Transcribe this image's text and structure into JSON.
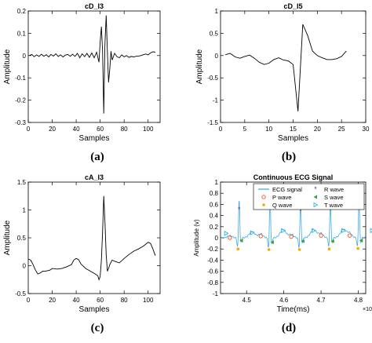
{
  "figure": {
    "captions": [
      "(a)",
      "(b)",
      "(c)",
      "(d)"
    ]
  },
  "chart_data": [
    {
      "id": "a",
      "type": "line",
      "title": "cD_I3",
      "xlabel": "Samples",
      "ylabel": "Amplitude",
      "xlim": [
        0,
        110
      ],
      "ylim": [
        -0.3,
        0.2
      ],
      "xticks": [
        0,
        20,
        40,
        60,
        80,
        100
      ],
      "yticks": [
        -0.3,
        -0.2,
        -0.1,
        0,
        0.1,
        0.2
      ],
      "yticklabels": [
        "-0.3",
        "-0.2",
        "-0.1",
        "0",
        "0.1",
        "0.2"
      ],
      "line_color": "#000000",
      "series": [
        {
          "x": [
            1,
            3,
            5,
            7,
            9,
            11,
            13,
            15,
            17,
            19,
            21,
            23,
            25,
            27,
            29,
            31,
            33,
            35,
            37,
            39,
            41,
            43,
            45,
            47,
            49,
            51,
            53,
            55,
            57,
            59,
            60,
            61,
            62,
            63,
            64,
            65,
            66,
            67,
            68,
            69,
            70,
            72,
            74,
            76,
            78,
            80,
            82,
            84,
            86,
            88,
            90,
            92,
            94,
            96,
            98,
            100,
            102,
            104,
            106
          ],
          "y": [
            0.0,
            0.005,
            -0.005,
            0.003,
            -0.004,
            0.006,
            -0.003,
            0.004,
            -0.006,
            0.005,
            -0.002,
            0.008,
            -0.004,
            0.003,
            -0.006,
            0.002,
            0.005,
            -0.003,
            0.006,
            -0.004,
            0.01,
            -0.01,
            0.008,
            -0.005,
            0.01,
            -0.008,
            0.012,
            -0.01,
            0.015,
            -0.03,
            0.06,
            0.13,
            0.02,
            -0.26,
            0.05,
            0.18,
            0.02,
            -0.12,
            -0.06,
            0.02,
            -0.02,
            0.01,
            -0.005,
            -0.01,
            0.003,
            -0.006,
            0.0,
            -0.008,
            -0.004,
            -0.006,
            -0.003,
            -0.002,
            0.0,
            0.004,
            0.007,
            0.003,
            0.012,
            0.017,
            0.015
          ]
        }
      ]
    },
    {
      "id": "b",
      "type": "line",
      "title": "cD_I5",
      "xlabel": "Samples",
      "ylabel": "Amplitude",
      "xlim": [
        0,
        30
      ],
      "ylim": [
        -1.5,
        1
      ],
      "xticks": [
        0,
        5,
        10,
        15,
        20,
        25,
        30
      ],
      "yticks": [
        -1.5,
        -1,
        -0.5,
        0,
        0.5,
        1
      ],
      "yticklabels": [
        "-1.5",
        "-1",
        "-0.5",
        "0",
        "0.5",
        "1"
      ],
      "line_color": "#000000",
      "series": [
        {
          "x": [
            1,
            2,
            3,
            4,
            5,
            6,
            7,
            8,
            9,
            10,
            11,
            12,
            13,
            14,
            15,
            16,
            17,
            18,
            19,
            20,
            21,
            22,
            23,
            24,
            25,
            26
          ],
          "y": [
            0.02,
            0.05,
            -0.03,
            -0.06,
            -0.02,
            0.01,
            -0.06,
            -0.15,
            -0.2,
            -0.17,
            -0.09,
            -0.05,
            -0.1,
            -0.12,
            -0.2,
            -1.25,
            0.7,
            0.45,
            0.1,
            0.0,
            -0.05,
            -0.09,
            -0.09,
            -0.07,
            -0.02,
            0.1
          ]
        }
      ]
    },
    {
      "id": "c",
      "type": "line",
      "title": "cA_I3",
      "xlabel": "Samples",
      "ylabel": "Amplitude",
      "xlim": [
        0,
        110
      ],
      "ylim": [
        -0.5,
        1.5
      ],
      "xticks": [
        0,
        20,
        40,
        60,
        80,
        100
      ],
      "yticks": [
        -0.5,
        0,
        0.5,
        1,
        1.5
      ],
      "yticklabels": [
        "-0.5",
        "0",
        "0.5",
        "1",
        "1.5"
      ],
      "line_color": "#000000",
      "series": [
        {
          "x": [
            0,
            2,
            4,
            6,
            8,
            10,
            12,
            14,
            16,
            18,
            20,
            24,
            28,
            32,
            36,
            38,
            40,
            42,
            44,
            48,
            52,
            56,
            58,
            59,
            60,
            61,
            62,
            63,
            64,
            65,
            66,
            67,
            68,
            70,
            72,
            76,
            80,
            84,
            88,
            92,
            96,
            100,
            102,
            104,
            106
          ],
          "y": [
            0.12,
            0.1,
            0.02,
            -0.08,
            -0.15,
            -0.13,
            -0.1,
            -0.1,
            -0.09,
            -0.08,
            -0.05,
            -0.06,
            -0.05,
            -0.02,
            0.02,
            0.1,
            0.13,
            0.11,
            0.03,
            -0.05,
            -0.1,
            -0.15,
            -0.18,
            -0.25,
            -0.2,
            0.1,
            0.6,
            1.25,
            0.8,
            0.2,
            -0.1,
            -0.05,
            0.02,
            0.1,
            0.08,
            0.05,
            0.13,
            0.2,
            0.26,
            0.3,
            0.35,
            0.42,
            0.4,
            0.3,
            0.18
          ]
        }
      ]
    },
    {
      "id": "d",
      "type": "line",
      "title": "Continuous ECG Signal",
      "xlabel": "Time(ms)",
      "ylabel": "Amplitude (v)",
      "x_exponent_label": "×10^4",
      "xlim": [
        4.43,
        4.82
      ],
      "ylim": [
        -1,
        1
      ],
      "xticks": [
        4.5,
        4.6,
        4.7,
        4.8
      ],
      "yticks": [
        -1,
        -0.8,
        -0.6,
        -0.4,
        -0.2,
        0,
        0.2,
        0.4,
        0.6,
        0.8,
        1
      ],
      "yticklabels": [
        "-1",
        "-0.8",
        "-0.6",
        "-0.4",
        "-0.2",
        "0",
        "0.2",
        "0.4",
        "0.6",
        "0.8",
        "1"
      ],
      "legend_position": "top-right",
      "beat_times": [
        4.48,
        4.563,
        4.645,
        4.725,
        4.802
      ],
      "series": [
        {
          "name": "ECG signal",
          "color": "#3da9e0",
          "marker": "line"
        },
        {
          "name": "P wave",
          "color": "#e8501e",
          "marker": "circle"
        },
        {
          "name": "Q wave",
          "color": "#f5a800",
          "marker": "dot"
        },
        {
          "name": "R wave",
          "color": "#7b2a8c",
          "marker": "star"
        },
        {
          "name": "S wave",
          "color": "#3ea040",
          "marker": "triangle-left"
        },
        {
          "name": "T wave",
          "color": "#2cb4e0",
          "marker": "triangle-right"
        }
      ],
      "r_values": [
        0.51,
        0.51,
        0.48,
        0.49,
        0.51
      ],
      "q_values": [
        -0.2,
        -0.21,
        -0.21,
        -0.2,
        -0.19
      ],
      "p_values": [
        0.0,
        0.03,
        0.02,
        0.04,
        0.04
      ],
      "s_values": [
        -0.05,
        -0.08,
        -0.06,
        -0.06,
        -0.05
      ],
      "t_values": [
        0.06,
        0.1,
        0.1,
        0.1,
        0.1
      ]
    }
  ]
}
